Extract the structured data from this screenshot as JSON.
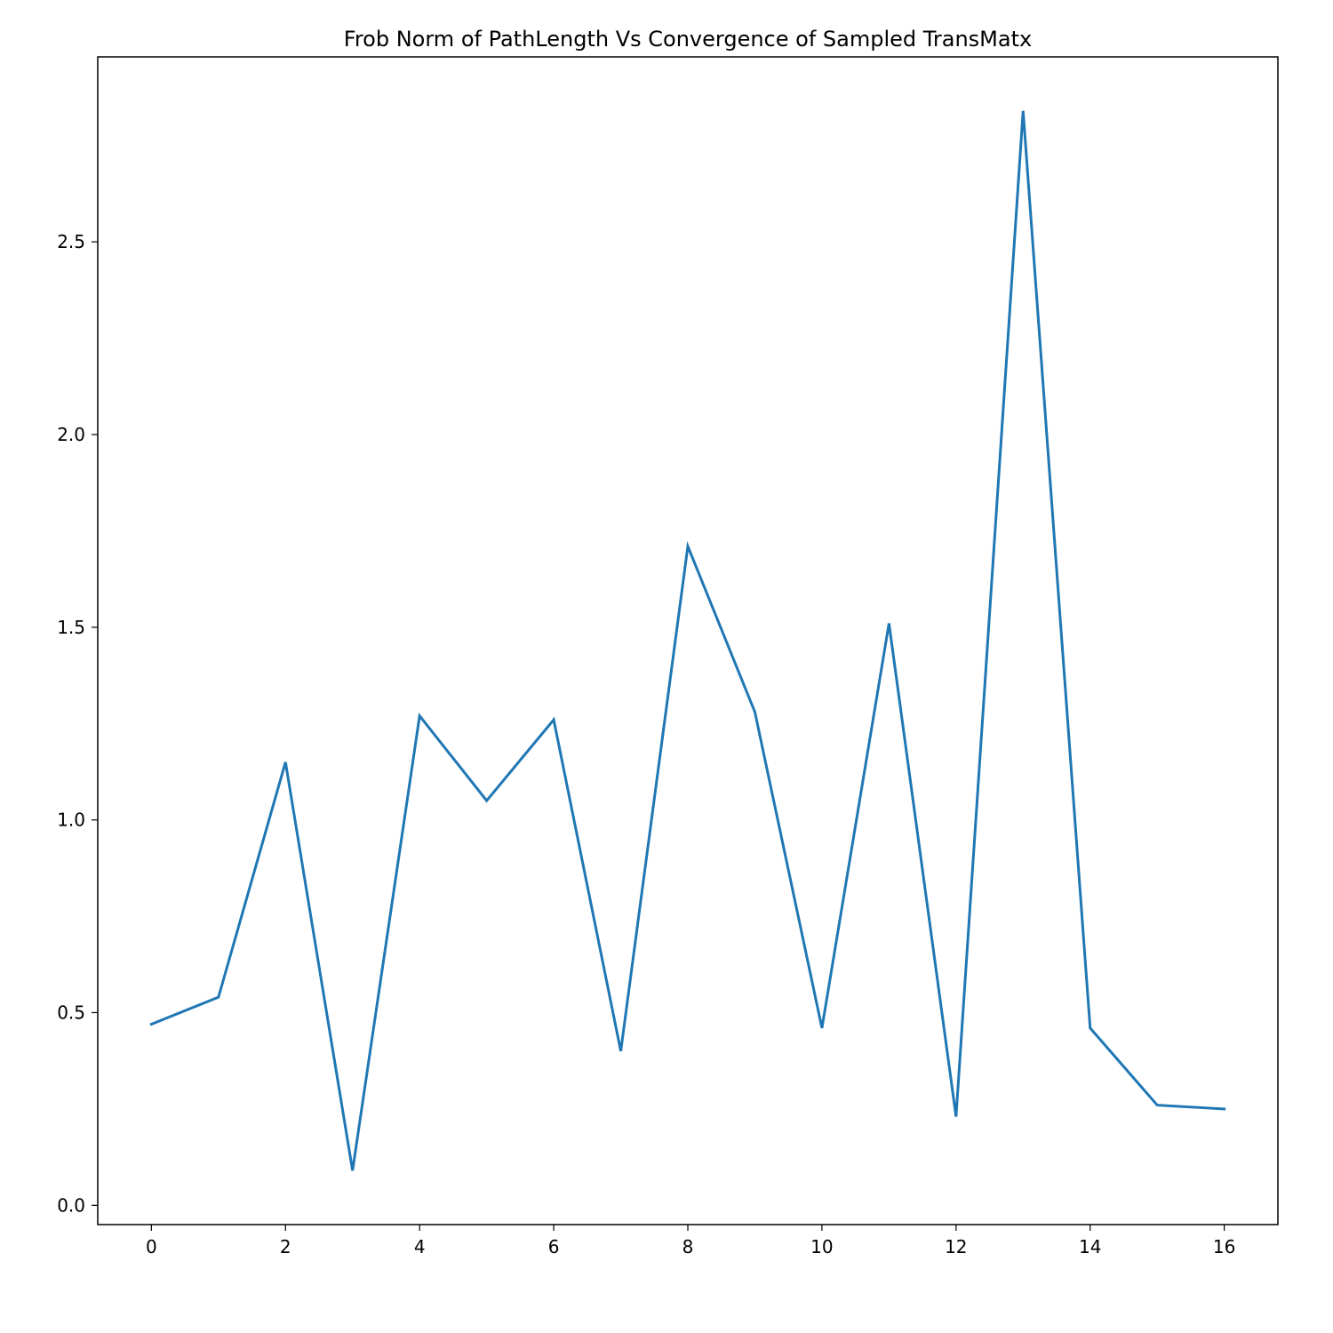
{
  "chart_data": {
    "type": "line",
    "title": "Frob Norm of PathLength Vs Convergence of Sampled TransMatx",
    "xlabel": "",
    "ylabel": "",
    "x": [
      0,
      1,
      2,
      3,
      4,
      5,
      6,
      7,
      8,
      9,
      10,
      11,
      12,
      13,
      14,
      15,
      16
    ],
    "series": [
      {
        "values": [
          0.47,
          0.54,
          1.15,
          0.09,
          1.27,
          1.05,
          1.26,
          0.4,
          1.71,
          1.28,
          0.46,
          1.51,
          0.23,
          2.84,
          0.46,
          0.26,
          0.25
        ],
        "color": "#1f77b4"
      }
    ],
    "xlim": [
      -0.8,
      16.8
    ],
    "ylim": [
      -0.05,
      2.98
    ],
    "xticks": [
      0,
      2,
      4,
      6,
      8,
      10,
      12,
      14,
      16
    ],
    "xtick_labels": [
      "0",
      "2",
      "4",
      "6",
      "8",
      "10",
      "12",
      "14",
      "16"
    ],
    "yticks": [
      0.0,
      0.5,
      1.0,
      1.5,
      2.0,
      2.5
    ],
    "ytick_labels": [
      "0.0",
      "0.5",
      "1.0",
      "1.5",
      "2.0",
      "2.5"
    ],
    "grid": false,
    "legend": "none"
  }
}
